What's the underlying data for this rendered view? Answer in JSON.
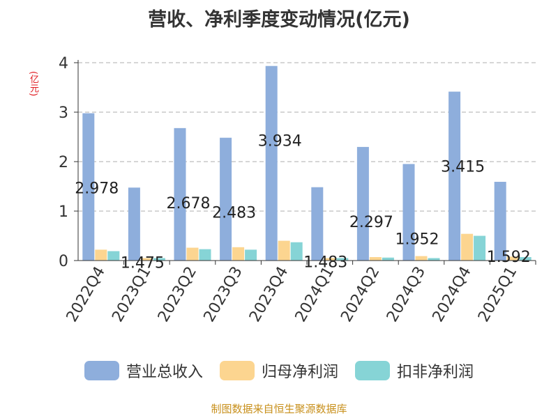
{
  "chart_data": {
    "type": "bar",
    "title": "营收、净利季度变动情况(亿元)",
    "ylabel": "(亿元)",
    "ylim": [
      0,
      4
    ],
    "yticks": [
      0,
      1,
      2,
      3,
      4
    ],
    "grid": true,
    "legend_position": "bottom",
    "categories": [
      "2022Q4",
      "2023Q1",
      "2023Q2",
      "2023Q3",
      "2023Q4",
      "2024Q1",
      "2024Q2",
      "2024Q3",
      "2024Q4",
      "2025Q1"
    ],
    "series": [
      {
        "name": "营业总收入",
        "color": "#8eaedc",
        "values": [
          2.978,
          1.475,
          2.678,
          2.483,
          3.934,
          1.483,
          2.297,
          1.952,
          3.415,
          1.592
        ],
        "data_labels": [
          "2.978",
          "1.475",
          "2.678",
          "2.483",
          "3.934",
          "1.483",
          "2.297",
          "1.952",
          "3.415",
          "1.592"
        ]
      },
      {
        "name": "归母净利润",
        "color": "#fcd590",
        "values": [
          0.22,
          0.05,
          0.26,
          0.27,
          0.4,
          0.05,
          0.07,
          0.09,
          0.54,
          0.08
        ]
      },
      {
        "name": "扣非净利润",
        "color": "#86d4d6",
        "values": [
          0.19,
          0.05,
          0.23,
          0.22,
          0.37,
          0.05,
          0.06,
          0.05,
          0.5,
          0.07
        ]
      }
    ]
  },
  "source": "制图数据来自恒生聚源数据库"
}
